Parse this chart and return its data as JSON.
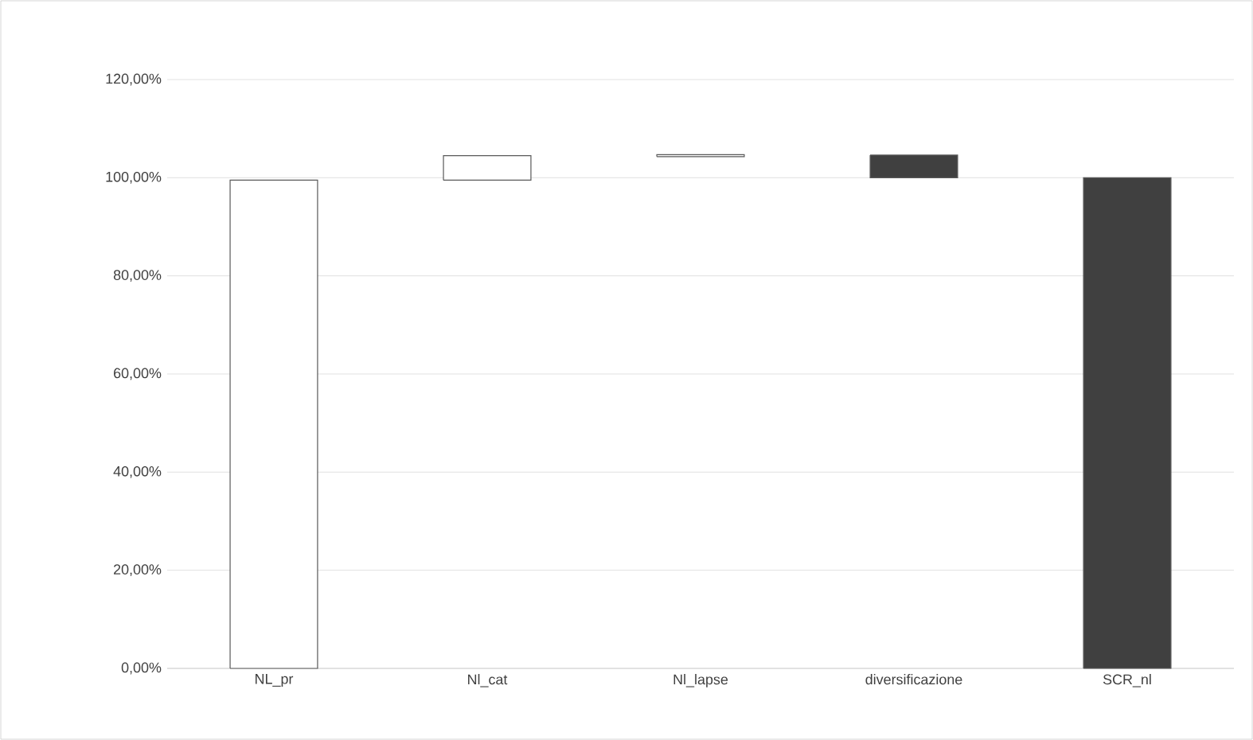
{
  "chart_data": {
    "type": "bar",
    "categories": [
      "NL_pr",
      "Nl_cat",
      "Nl_lapse",
      "diversificazione",
      "SCR_nl"
    ],
    "base": [
      0,
      99.5,
      104.3,
      104.6,
      0
    ],
    "values": [
      99.5,
      5.0,
      0.4,
      -4.6,
      100
    ],
    "colors": [
      "#ffffff",
      "#ffffff",
      "#ffffff",
      "#404040",
      "#404040"
    ],
    "ylim": [
      0,
      120
    ],
    "yticks": [
      {
        "value": 0,
        "label": "0,00%"
      },
      {
        "value": 20,
        "label": "20,00%"
      },
      {
        "value": 40,
        "label": "40,00%"
      },
      {
        "value": 60,
        "label": "60,00%"
      },
      {
        "value": 80,
        "label": "80,00%"
      },
      {
        "value": 100,
        "label": "100,00%"
      },
      {
        "value": 120,
        "label": "120,00%"
      }
    ],
    "grid": "y"
  }
}
